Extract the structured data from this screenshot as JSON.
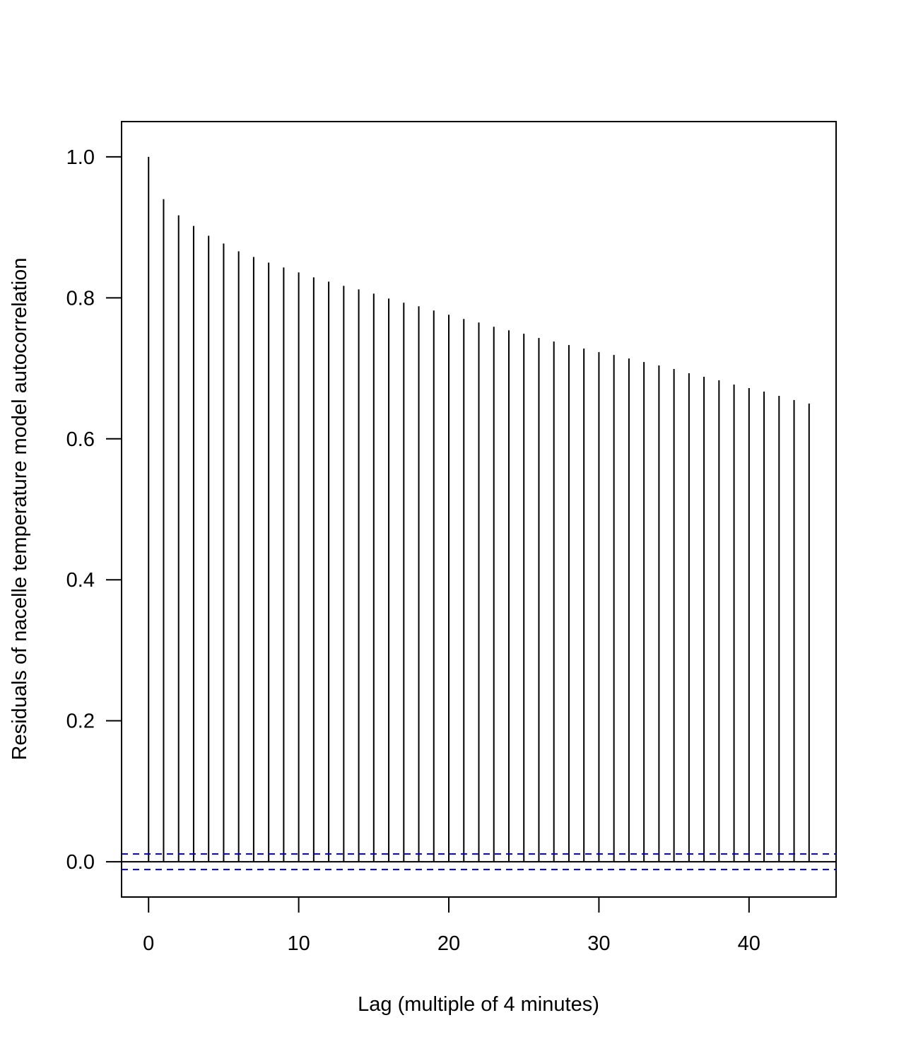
{
  "chart_data": {
    "type": "bar",
    "title": "",
    "xlabel": "Lag (multiple of 4 minutes)",
    "ylabel": "Residuals of nacelle temperature model autocorrelation",
    "x": [
      0,
      1,
      2,
      3,
      4,
      5,
      6,
      7,
      8,
      9,
      10,
      11,
      12,
      13,
      14,
      15,
      16,
      17,
      18,
      19,
      20,
      21,
      22,
      23,
      24,
      25,
      26,
      27,
      28,
      29,
      30,
      31,
      32,
      33,
      34,
      35,
      36,
      37,
      38,
      39,
      40,
      41,
      42,
      43,
      44
    ],
    "values": [
      1.0,
      0.94,
      0.917,
      0.902,
      0.888,
      0.877,
      0.866,
      0.858,
      0.85,
      0.843,
      0.836,
      0.829,
      0.823,
      0.817,
      0.812,
      0.806,
      0.799,
      0.793,
      0.788,
      0.782,
      0.776,
      0.77,
      0.765,
      0.759,
      0.754,
      0.749,
      0.743,
      0.738,
      0.733,
      0.728,
      0.723,
      0.719,
      0.714,
      0.709,
      0.704,
      0.699,
      0.693,
      0.688,
      0.683,
      0.677,
      0.672,
      0.667,
      0.661,
      0.655,
      0.65
    ],
    "confidence_bound": 0.011,
    "xlim": [
      -1.8,
      45.8
    ],
    "ylim": [
      -0.05,
      1.05
    ],
    "x_ticks": [
      "0",
      "10",
      "20",
      "30",
      "40"
    ],
    "y_ticks": [
      "0.0",
      "0.2",
      "0.4",
      "0.6",
      "0.8",
      "1.0"
    ],
    "colors": {
      "bars": "#000000",
      "confidence_lines": "#0000cc",
      "frame": "#000000"
    },
    "grid": false
  }
}
